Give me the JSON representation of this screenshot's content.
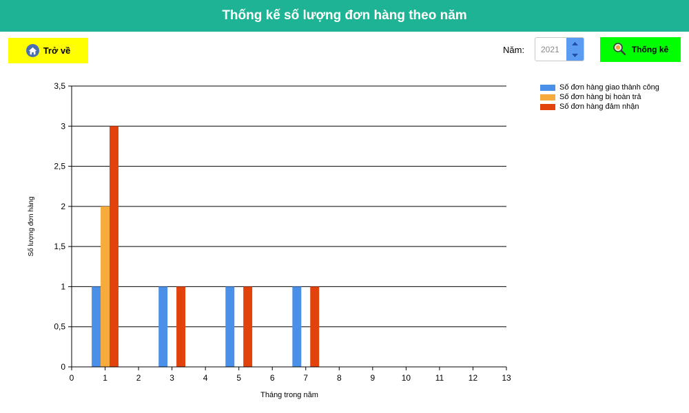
{
  "header": {
    "title": "Thống kế số lượng đơn hàng theo năm"
  },
  "toolbar": {
    "back_label": "Trở về",
    "year_label": "Năm:",
    "year_value": "2021",
    "stat_label": "Thống kê"
  },
  "icons": {
    "back": "home-icon",
    "stat": "search-icon",
    "spin_up": "chevron-up-icon",
    "spin_down": "chevron-down-icon"
  },
  "colors": {
    "header": "#1db394",
    "back_button": "#ffff00",
    "stat_button": "#00ff00",
    "spinner": "#5c9bf2"
  },
  "chart_data": {
    "type": "bar",
    "xlabel": "Tháng trong năm",
    "ylabel": "Số lượng đơn hàng",
    "xlim": [
      0,
      13
    ],
    "ylim": [
      0,
      3.5
    ],
    "x_ticks": [
      "0",
      "1",
      "2",
      "3",
      "4",
      "5",
      "6",
      "7",
      "8",
      "9",
      "10",
      "11",
      "12",
      "13"
    ],
    "y_ticks": [
      "0",
      "0,5",
      "1",
      "1,5",
      "2",
      "2,5",
      "3",
      "3,5"
    ],
    "grid": true,
    "legend_position": "top-right",
    "x": [
      1,
      3,
      5,
      7
    ],
    "series": [
      {
        "name": "Số đơn hàng giao thành công",
        "color": "#4a8fe8",
        "values": [
          1,
          1,
          1,
          1
        ]
      },
      {
        "name": "Số đơn hàng bị hoàn trả",
        "color": "#f6ab3c",
        "values": [
          2,
          0,
          0,
          0
        ]
      },
      {
        "name": "Số đơn hàng đảm nhận",
        "color": "#e2420c",
        "values": [
          3,
          1,
          1,
          1
        ]
      }
    ]
  }
}
